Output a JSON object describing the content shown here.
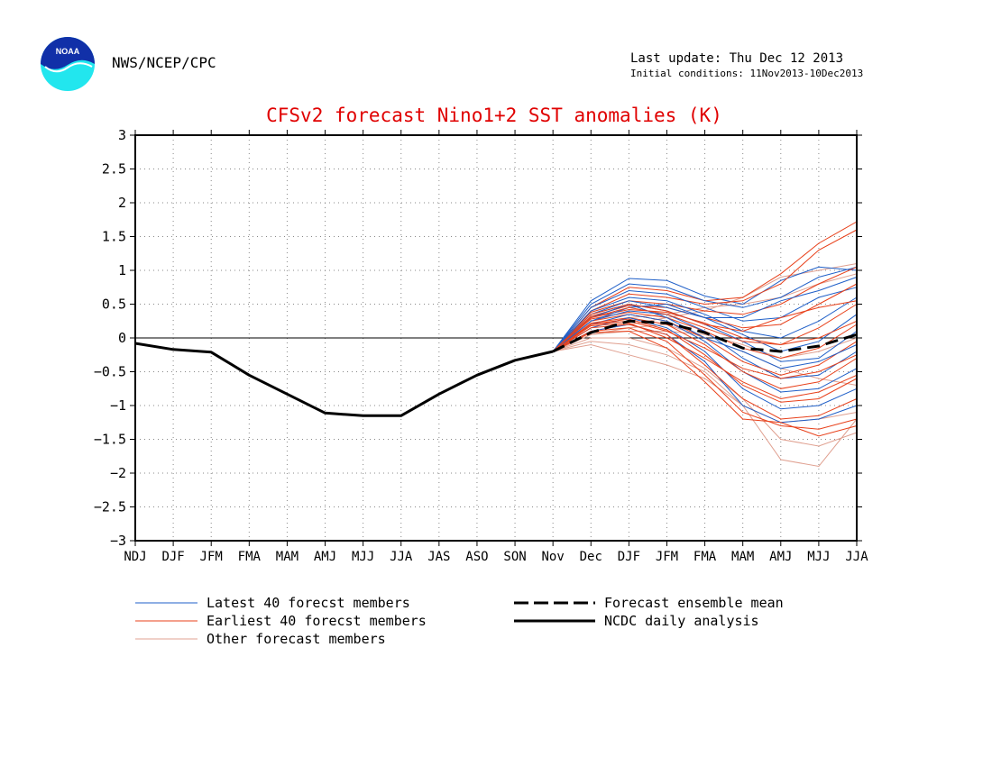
{
  "header": {
    "agency": "NWS/NCEP/CPC",
    "last_update": "Last update: Thu Dec 12 2013",
    "initial_conditions": "Initial conditions: 11Nov2013-10Dec2013",
    "logo_text": "NOAA"
  },
  "colors": {
    "title": "#e00000",
    "latest": "#1f5fc8",
    "earliest": "#e8401a",
    "other": "#e0a090",
    "mean": "#000000",
    "analysis": "#000000"
  },
  "chart_data": {
    "type": "line",
    "title": "CFSv2 forecast Nino1+2 SST anomalies (K)",
    "xlabel": "",
    "ylabel": "",
    "categories": [
      "NDJ",
      "DJF",
      "JFM",
      "FMA",
      "MAM",
      "AMJ",
      "MJJ",
      "JJA",
      "JAS",
      "ASO",
      "SON",
      "Nov",
      "Dec",
      "DJF",
      "JFM",
      "FMA",
      "MAM",
      "AMJ",
      "MJJ",
      "JJA"
    ],
    "ylim": [
      -3,
      3
    ],
    "yticks": [
      3,
      2.5,
      2,
      1.5,
      1,
      0.5,
      0,
      -0.5,
      -1,
      -1.5,
      -2,
      -2.5,
      -3
    ],
    "ytick_labels": [
      "3",
      "2.5",
      "2",
      "1.5",
      "1",
      "0.5",
      "0",
      "−0.5",
      "−1",
      "−1.5",
      "−2",
      "−2.5",
      "−3"
    ],
    "grid": true,
    "zero_line": true,
    "analysis": {
      "name": "NCDC daily analysis",
      "x": [
        0,
        1,
        2,
        3,
        4,
        5,
        6,
        7,
        8,
        9,
        10,
        11
      ],
      "values": [
        -0.08,
        -0.17,
        -0.21,
        -0.55,
        -0.83,
        -1.11,
        -1.15,
        -1.15,
        -0.83,
        -0.55,
        -0.33,
        -0.2
      ]
    },
    "ensemble_mean": {
      "name": "Forecast ensemble mean",
      "x": [
        11,
        12,
        13,
        14,
        15,
        16,
        17,
        18,
        19
      ],
      "values": [
        -0.2,
        0.08,
        0.25,
        0.22,
        0.08,
        -0.15,
        -0.2,
        -0.12,
        0.05
      ]
    },
    "members": {
      "x": [
        11,
        12,
        13,
        14,
        15,
        16,
        17,
        18,
        19
      ],
      "latest": {
        "name": "Latest 40 forecst members",
        "values": [
          [
            -0.2,
            0.55,
            0.88,
            0.85,
            0.62,
            0.5,
            0.85,
            1.05,
            1.0
          ],
          [
            -0.2,
            0.5,
            0.8,
            0.75,
            0.55,
            0.45,
            0.6,
            0.9,
            1.05
          ],
          [
            -0.2,
            0.45,
            0.7,
            0.65,
            0.45,
            0.25,
            0.3,
            0.6,
            0.75
          ],
          [
            -0.2,
            0.4,
            0.6,
            0.55,
            0.35,
            0.1,
            0.0,
            0.25,
            0.6
          ],
          [
            -0.2,
            0.35,
            0.55,
            0.45,
            0.3,
            0.05,
            -0.2,
            -0.05,
            0.35
          ],
          [
            -0.2,
            0.3,
            0.5,
            0.4,
            0.2,
            -0.05,
            -0.35,
            -0.3,
            0.1
          ],
          [
            -0.2,
            0.25,
            0.4,
            0.35,
            0.1,
            -0.3,
            -0.6,
            -0.55,
            -0.2
          ],
          [
            -0.2,
            0.2,
            0.35,
            0.25,
            -0.05,
            -0.5,
            -0.8,
            -0.75,
            -0.45
          ],
          [
            -0.2,
            0.15,
            0.3,
            0.15,
            -0.2,
            -0.75,
            -1.05,
            -1.0,
            -0.75
          ],
          [
            -0.2,
            0.1,
            0.2,
            0.05,
            -0.35,
            -1.0,
            -1.25,
            -1.2,
            -1.0
          ],
          [
            -0.2,
            0.25,
            0.45,
            0.5,
            0.3,
            0.3,
            0.55,
            0.7,
            0.9
          ],
          [
            -0.2,
            0.35,
            0.5,
            0.3,
            0.0,
            -0.2,
            -0.45,
            -0.35,
            -0.1
          ]
        ]
      },
      "earliest": {
        "name": "Earliest 40 forecst members",
        "values": [
          [
            -0.2,
            0.45,
            0.75,
            0.7,
            0.55,
            0.6,
            0.95,
            1.4,
            1.72
          ],
          [
            -0.2,
            0.4,
            0.65,
            0.6,
            0.5,
            0.55,
            0.8,
            1.3,
            1.6
          ],
          [
            -0.2,
            0.38,
            0.55,
            0.5,
            0.4,
            0.35,
            0.5,
            0.8,
            1.05
          ],
          [
            -0.2,
            0.32,
            0.48,
            0.45,
            0.3,
            0.15,
            0.2,
            0.5,
            0.8
          ],
          [
            -0.2,
            0.3,
            0.42,
            0.38,
            0.22,
            0.0,
            -0.1,
            0.15,
            0.5
          ],
          [
            -0.2,
            0.28,
            0.38,
            0.3,
            0.1,
            -0.15,
            -0.3,
            -0.15,
            0.2
          ],
          [
            -0.2,
            0.25,
            0.35,
            0.25,
            0.0,
            -0.35,
            -0.55,
            -0.4,
            -0.05
          ],
          [
            -0.2,
            0.22,
            0.3,
            0.2,
            -0.1,
            -0.5,
            -0.75,
            -0.65,
            -0.3
          ],
          [
            -0.2,
            0.2,
            0.28,
            0.12,
            -0.25,
            -0.7,
            -0.95,
            -0.9,
            -0.6
          ],
          [
            -0.2,
            0.15,
            0.2,
            0.05,
            -0.4,
            -0.9,
            -1.2,
            -1.15,
            -0.9
          ],
          [
            -0.2,
            0.1,
            0.15,
            -0.05,
            -0.55,
            -1.1,
            -1.3,
            -1.35,
            -1.2
          ],
          [
            -0.2,
            0.08,
            0.1,
            -0.15,
            -0.65,
            -1.2,
            -1.25,
            -1.45,
            -1.3
          ],
          [
            -0.2,
            0.35,
            0.5,
            0.4,
            0.2,
            0.1,
            0.3,
            0.45,
            0.55
          ],
          [
            -0.2,
            0.3,
            0.45,
            0.35,
            0.15,
            -0.05,
            -0.1,
            0.0,
            0.25
          ],
          [
            -0.2,
            0.2,
            0.25,
            0.1,
            -0.15,
            -0.45,
            -0.6,
            -0.5,
            -0.25
          ],
          [
            -0.2,
            0.18,
            0.22,
            0.0,
            -0.3,
            -0.65,
            -0.9,
            -0.8,
            -0.55
          ]
        ]
      },
      "other": {
        "name": "Other forecast members",
        "values": [
          [
            -0.2,
            0.1,
            0.2,
            0.3,
            0.4,
            0.6,
            0.9,
            1.0,
            1.1
          ],
          [
            -0.2,
            0.05,
            0.1,
            0.1,
            0.05,
            -0.1,
            -0.3,
            -0.2,
            0.0
          ],
          [
            -0.2,
            -0.05,
            -0.1,
            -0.25,
            -0.5,
            -1.0,
            -1.8,
            -1.9,
            -1.2
          ],
          [
            -0.2,
            0.0,
            0.0,
            -0.15,
            -0.45,
            -0.9,
            -1.5,
            -1.6,
            -1.4
          ],
          [
            -0.2,
            -0.1,
            -0.25,
            -0.4,
            -0.6,
            -1.0,
            -1.25,
            -1.2,
            -1.1
          ],
          [
            -0.2,
            0.15,
            0.3,
            0.35,
            0.45,
            0.5,
            0.6,
            0.8,
            0.95
          ],
          [
            -0.2,
            0.05,
            0.15,
            0.2,
            0.0,
            -0.2,
            -0.45,
            -0.6,
            -0.7
          ]
        ]
      }
    },
    "legend": {
      "placement": "bottom",
      "entries": [
        {
          "label": "Latest 40 forecst members",
          "style": "latest"
        },
        {
          "label": "Earliest 40 forecst members",
          "style": "earliest"
        },
        {
          "label": "Other forecast members",
          "style": "other"
        },
        {
          "label": "Forecast ensemble mean",
          "style": "mean"
        },
        {
          "label": "NCDC daily analysis",
          "style": "analysis"
        }
      ]
    }
  }
}
